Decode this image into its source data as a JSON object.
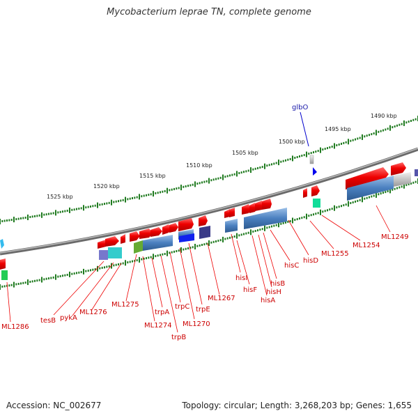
{
  "title": "Mycobacterium leprae TN, complete genome",
  "footer": {
    "accession": "Accession: NC_002677",
    "topology": "Topology: circular; Length: 3,268,203 bp; Genes: 1,655"
  },
  "scale_labels": [
    "1525 kbp",
    "1520 kbp",
    "1515 kbp",
    "1510 kbp",
    "1505 kbp",
    "1500 kbp",
    "1495 kbp",
    "1490 kbp"
  ],
  "gene_labels": {
    "ML1286": "ML1286",
    "tesB": "tesB",
    "pykA": "pykA",
    "ML1276": "ML1276",
    "ML1275": "ML1275",
    "ML1274": "ML1274",
    "trpA": "trpA",
    "trpB": "trpB",
    "trpC": "trpC",
    "ML1270": "ML1270",
    "trpE": "trpE",
    "ML1267": "ML1267",
    "hisI": "hisI",
    "hisF": "hisF",
    "hisA": "hisA",
    "hisH": "hisH",
    "hisB": "hisB",
    "hisC": "hisC",
    "hisD": "hisD",
    "ML1255": "ML1255",
    "ML1254": "ML1254",
    "ML1249": "ML1249",
    "glbO": "glbO"
  },
  "colors": {
    "forward_gene": "#ee0000",
    "reverse_label": "#cc0000",
    "rna_label": "#1a1aaa",
    "backbone": "#8a8a8a",
    "tick": "#1e7a1e"
  }
}
